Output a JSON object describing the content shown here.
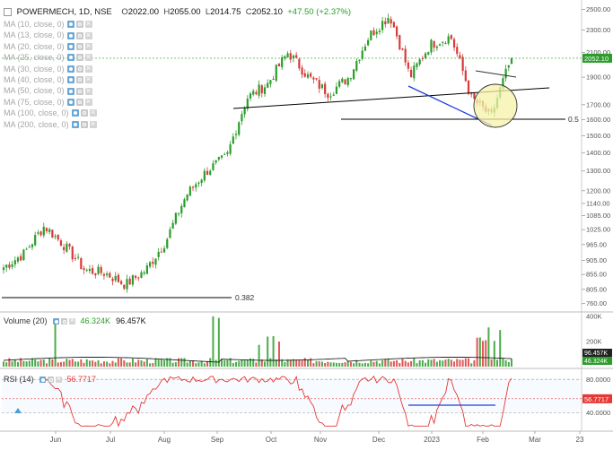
{
  "header": {
    "symbol_label": "POWERMECH, 1D, NSE",
    "open_label": "O",
    "open": "2022.00",
    "high_label": "H",
    "high": "2055.00",
    "low_label": "L",
    "low": "2014.75",
    "close_label": "C",
    "close": "2052.10",
    "change": "+47.50 (+2.37%)"
  },
  "ma_indicators": [
    "MA (10, close, 0)",
    "MA (13, close, 0)",
    "MA (20, close, 0)",
    "MA (25, close, 0)",
    "MA (30, close, 0)",
    "MA (40, close, 0)",
    "MA (50, close, 0)",
    "MA (75, close, 0)",
    "MA (100, close, 0)",
    "MA (200, close, 0)"
  ],
  "volume_legend": {
    "label": "Volume (20)",
    "value1": "46.324K",
    "value2": "96.457K"
  },
  "rsi_legend": {
    "label": "RSI (14)",
    "value": "56.7717"
  },
  "fib_labels": {
    "upper": "0.5",
    "lower": "0.382"
  },
  "price_axis_ticks": [
    "2500.00",
    "2300.00",
    "2100.00",
    "1900.00",
    "1700.00",
    "1600.00",
    "1500.00",
    "1400.00",
    "1300.00",
    "1200.00",
    "1140.00",
    "1085.00",
    "1025.00",
    "965.00",
    "905.00",
    "855.00",
    "805.00",
    "760.00"
  ],
  "price_axis_current": "2052.10",
  "volume_axis_ticks": [
    "400K",
    "200K"
  ],
  "volume_axis_badges": [
    "96.457K",
    "46.324K"
  ],
  "rsi_axis_ticks": [
    "80.0000",
    "40.0000"
  ],
  "rsi_axis_current": "56.7717",
  "time_axis_labels": [
    "Jun",
    "Jul",
    "Aug",
    "Sep",
    "Oct",
    "Nov",
    "Dec",
    "2023",
    "Feb",
    "Mar",
    "23"
  ],
  "colors": {
    "up": "#2a9d2a",
    "down": "#d93a3a",
    "price_line": "#2a9d2a",
    "rsi_line": "#e53935",
    "trendline_blue": "#1f3fd8",
    "trendline_black": "#000000",
    "highlight_circle_fill": "#f6f2a8"
  },
  "chart_data": [
    {
      "type": "candlestick",
      "symbol": "POWERMECH",
      "interval": "1D",
      "exchange": "NSE",
      "price_scale": "log",
      "ylim": [
        740,
        2560
      ],
      "x_labels": [
        "Jun",
        "Jul",
        "Aug",
        "Sep",
        "Oct",
        "Nov",
        "Dec",
        "2023",
        "Feb",
        "Mar",
        "23"
      ],
      "last": {
        "open": 2022.0,
        "high": 2055.0,
        "low": 2014.75,
        "close": 2052.1,
        "change": 47.5,
        "change_pct": 2.37
      },
      "approx_path": [
        {
          "x": "mid-May",
          "close": 880
        },
        {
          "x": "late May",
          "close": 930
        },
        {
          "x": "early Jun",
          "close": 1040
        },
        {
          "x": "mid Jun",
          "close": 960
        },
        {
          "x": "late Jun",
          "close": 870
        },
        {
          "x": "early Jul",
          "close": 860
        },
        {
          "x": "mid Jul",
          "close": 820
        },
        {
          "x": "late Jul",
          "close": 870
        },
        {
          "x": "early Aug",
          "close": 980
        },
        {
          "x": "mid Aug",
          "close": 1180
        },
        {
          "x": "late Aug",
          "close": 1300
        },
        {
          "x": "early Sep",
          "close": 1380
        },
        {
          "x": "mid Sep",
          "close": 1750
        },
        {
          "x": "late Sep",
          "close": 1850
        },
        {
          "x": "early Oct",
          "close": 2100
        },
        {
          "x": "mid Oct",
          "close": 1900
        },
        {
          "x": "early Nov",
          "close": 1780
        },
        {
          "x": "late Nov",
          "close": 1900
        },
        {
          "x": "early Dec",
          "close": 2250
        },
        {
          "x": "mid Dec",
          "close": 2440
        },
        {
          "x": "late Dec",
          "close": 1900
        },
        {
          "x": "early Jan",
          "close": 2170
        },
        {
          "x": "mid Jan",
          "close": 2240
        },
        {
          "x": "late Jan",
          "close": 1750
        },
        {
          "x": "early Feb",
          "close": 1620
        },
        {
          "x": "mid Feb",
          "close": 2052.1
        }
      ],
      "fibonacci_levels": [
        {
          "label": "0.5",
          "price": 1670
        },
        {
          "label": "0.382",
          "price": 795
        }
      ]
    },
    {
      "type": "bar",
      "name": "Volume (20)",
      "values_label": [
        "46.324K",
        "96.457K"
      ],
      "ylim": [
        0,
        420000
      ]
    },
    {
      "type": "line",
      "name": "RSI (14)",
      "last": 56.7717,
      "ylim": [
        20,
        90
      ],
      "levels": [
        80,
        40
      ]
    }
  ]
}
